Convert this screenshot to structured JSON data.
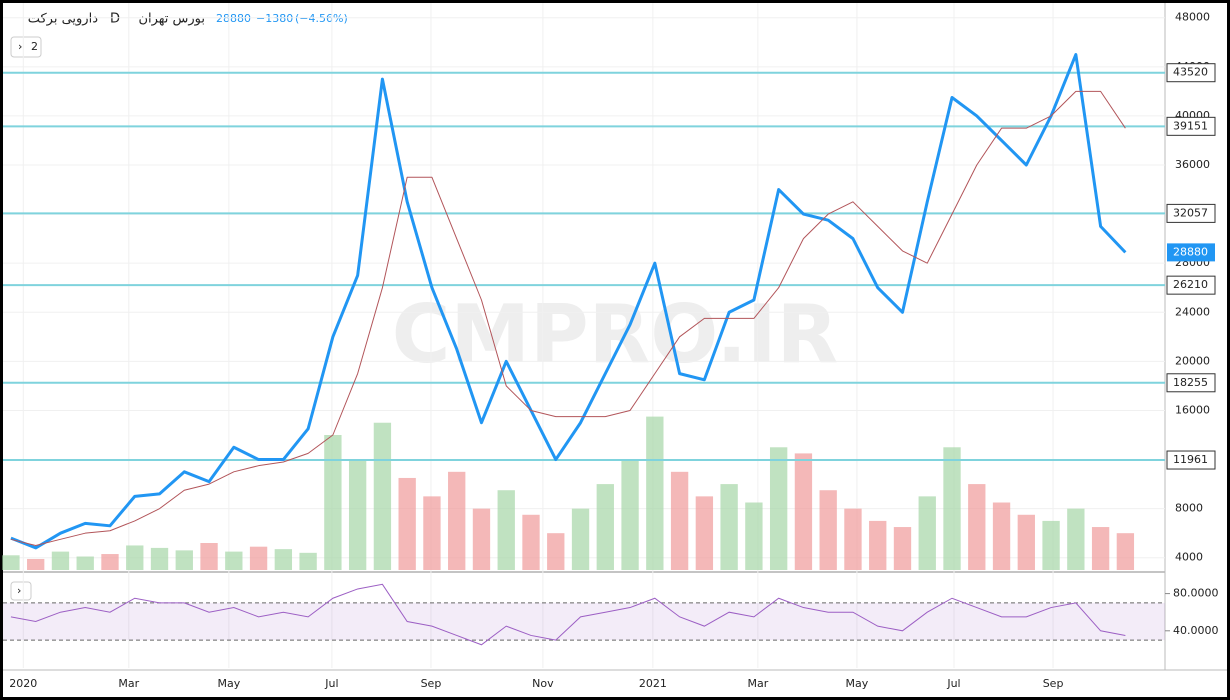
{
  "header": {
    "symbol": "دارویی برکت",
    "interval": "D",
    "exchange": "بورس تهران",
    "change": "−1380",
    "change_pct": "(−4.56%)",
    "badge": "2",
    "watermark": "CMPRO.IR"
  },
  "chart_data": {
    "type": "line",
    "x": [
      0,
      1,
      2,
      3,
      4,
      5,
      6,
      7,
      8,
      9,
      10,
      11,
      12,
      13,
      14,
      15,
      16,
      17,
      18,
      19,
      20,
      21,
      22,
      23,
      24,
      25,
      26,
      27,
      28,
      29,
      30,
      31,
      32,
      33,
      34,
      35,
      36,
      37,
      38,
      39,
      40,
      41,
      42,
      43,
      44,
      45
    ],
    "xticks": [
      {
        "value": 0.5,
        "label": "2020"
      },
      {
        "value": 4.76,
        "label": "Mar"
      },
      {
        "value": 8.8,
        "label": "May"
      },
      {
        "value": 12.96,
        "label": "Jul"
      },
      {
        "value": 16.96,
        "label": "Sep"
      },
      {
        "value": 21.48,
        "label": "Nov"
      },
      {
        "value": 25.92,
        "label": "2021"
      },
      {
        "value": 30.16,
        "label": "Mar"
      },
      {
        "value": 34.16,
        "label": "May"
      },
      {
        "value": 38.08,
        "label": "Jul"
      },
      {
        "value": 42.08,
        "label": "Sep"
      }
    ],
    "xlim": [
      -0.32,
      46.6
    ],
    "series": [
      {
        "color": "#2196f3",
        "values": [
          5600,
          4800,
          6000,
          6800,
          6600,
          9000,
          9200,
          11000,
          10200,
          13000,
          12000,
          12000,
          14500,
          22000,
          27000,
          43000,
          33000,
          26000,
          21000,
          15000,
          20000,
          16000,
          12000,
          15000,
          19000,
          23000,
          28000,
          19000,
          18500,
          24000,
          25000,
          34000,
          32000,
          31500,
          30000,
          26000,
          24000,
          33000,
          41500,
          40000,
          38000,
          36000,
          40000,
          45000,
          31000,
          28880
        ]
      },
      {
        "color": "#b2555a",
        "values": [
          5500,
          5000,
          5500,
          6000,
          6200,
          7000,
          8000,
          9500,
          10000,
          11000,
          11500,
          11800,
          12500,
          14000,
          19000,
          26000,
          35000,
          35000,
          30000,
          25000,
          18000,
          16000,
          15500,
          15500,
          15500,
          16000,
          19000,
          22000,
          23500,
          23500,
          23500,
          26000,
          30000,
          32000,
          33000,
          31000,
          29000,
          28000,
          32000,
          36000,
          39000,
          39000,
          40000,
          42000,
          42000,
          39000
        ]
      }
    ],
    "volume": [
      1200,
      900,
      1500,
      1100,
      1300,
      2000,
      1800,
      1600,
      2200,
      1500,
      1900,
      1700,
      1400,
      11000,
      9000,
      12000,
      7500,
      6000,
      8000,
      5000,
      6500,
      4500,
      3000,
      5000,
      7000,
      9000,
      12500,
      8000,
      6000,
      7000,
      5500,
      10000,
      9500,
      6500,
      5000,
      4000,
      3500,
      6000,
      10000,
      7000,
      5500,
      4500,
      4000,
      5000,
      3500,
      3000
    ],
    "volume_colors": [
      "#a5d6a7",
      "#ef9a9a"
    ],
    "ylim": [
      3000,
      49200
    ],
    "yticks": [
      4000,
      8000,
      12000,
      16000,
      20000,
      24000,
      28000,
      32000,
      36000,
      40000,
      44000,
      48000
    ],
    "levels": [
      43520,
      39151,
      32057,
      26210,
      18255,
      11961
    ],
    "level_color": "#7fd3dd",
    "last_price": 28880,
    "rsi": {
      "color": "#9c5fc4",
      "values": [
        55,
        50,
        60,
        65,
        60,
        75,
        70,
        70,
        60,
        65,
        55,
        60,
        55,
        75,
        85,
        90,
        50,
        45,
        35,
        25,
        45,
        35,
        30,
        55,
        60,
        65,
        75,
        55,
        45,
        60,
        55,
        75,
        65,
        60,
        60,
        45,
        40,
        60,
        75,
        65,
        55,
        55,
        65,
        70,
        40,
        35
      ],
      "ylim": [
        0,
        100
      ],
      "bands": [
        30,
        70
      ],
      "yticks": [
        {
          "value": 80,
          "label": "80.0000"
        },
        {
          "value": 40,
          "label": "40.0000"
        }
      ]
    }
  }
}
